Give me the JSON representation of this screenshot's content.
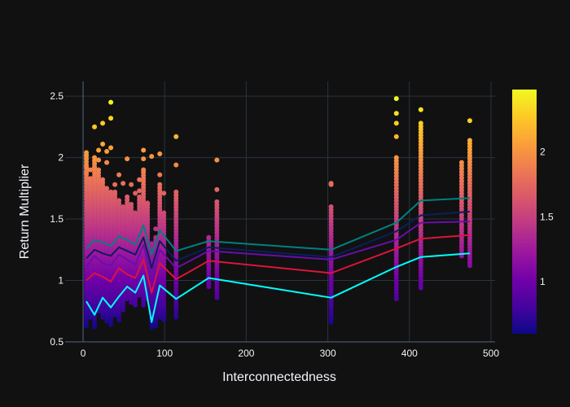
{
  "chart_data": {
    "type": "scatter",
    "title": "",
    "xlabel": "Interconnectedness",
    "ylabel": "Return Multiplier",
    "xlim": [
      -22,
      505
    ],
    "ylim": [
      0.5,
      2.62
    ],
    "x_ticks": [
      0,
      100,
      200,
      300,
      400,
      500
    ],
    "x_tick_labels": [
      "0",
      "100",
      "200",
      "300",
      "400",
      "500"
    ],
    "y_ticks": [
      0.5,
      1,
      1.5,
      2,
      2.5
    ],
    "y_tick_labels": [
      "0.5",
      "1",
      "1.5",
      "2",
      "2.5"
    ],
    "grid": true,
    "legend": "none",
    "colorscale": [
      "#0d0887",
      "#46039f",
      "#7201a8",
      "#9c179e",
      "#bd3786",
      "#d8576b",
      "#ed7953",
      "#fb9f3a",
      "#fdca26",
      "#f0f921"
    ],
    "colorbar": {
      "range": [
        0.6,
        2.48
      ],
      "ticks": [
        1,
        1.5,
        2
      ],
      "tick_labels": [
        "1",
        "1.5",
        "2"
      ]
    },
    "point_columns": [
      {
        "x": 4,
        "min": 0.63,
        "max": 2.04,
        "outliers": [
          2.02,
          1.93,
          1.88
        ]
      },
      {
        "x": 9,
        "min": 0.7,
        "max": 1.8,
        "outliers": [
          1.9,
          1.83
        ]
      },
      {
        "x": 14,
        "min": 0.62,
        "max": 2.0,
        "outliers": [
          2.25,
          1.92
        ]
      },
      {
        "x": 19,
        "min": 0.75,
        "max": 1.9,
        "outliers": [
          2.06,
          1.98
        ]
      },
      {
        "x": 24,
        "min": 0.7,
        "max": 1.82,
        "outliers": [
          2.28,
          2.11
        ]
      },
      {
        "x": 29,
        "min": 0.67,
        "max": 1.75,
        "outliers": [
          2.05,
          1.96
        ]
      },
      {
        "x": 34,
        "min": 0.64,
        "max": 1.72,
        "outliers": [
          2.45,
          2.32,
          2.08
        ]
      },
      {
        "x": 39,
        "min": 0.72,
        "max": 1.7,
        "outliers": [
          1.78,
          1.72
        ]
      },
      {
        "x": 44,
        "min": 0.68,
        "max": 1.65,
        "outliers": [
          1.86
        ]
      },
      {
        "x": 49,
        "min": 0.76,
        "max": 1.6,
        "outliers": [
          1.79
        ]
      },
      {
        "x": 54,
        "min": 0.85,
        "max": 1.68,
        "outliers": [
          1.99
        ]
      },
      {
        "x": 59,
        "min": 0.82,
        "max": 1.62,
        "outliers": [
          1.78
        ]
      },
      {
        "x": 64,
        "min": 0.8,
        "max": 1.55,
        "outliers": [
          1.71
        ]
      },
      {
        "x": 69,
        "min": 0.88,
        "max": 1.68,
        "outliers": [
          1.82,
          1.73
        ]
      },
      {
        "x": 74,
        "min": 0.8,
        "max": 1.88,
        "outliers": [
          2.06,
          1.99,
          1.9
        ]
      },
      {
        "x": 79,
        "min": 0.85,
        "max": 1.62,
        "outliers": [
          1.63
        ]
      },
      {
        "x": 84,
        "min": 0.62,
        "max": 1.3,
        "outliers": [
          2.01
        ]
      },
      {
        "x": 89,
        "min": 0.63,
        "max": 1.35,
        "outliers": [
          1.42
        ]
      },
      {
        "x": 94,
        "min": 0.7,
        "max": 1.78,
        "outliers": [
          2.03,
          1.86
        ]
      },
      {
        "x": 99,
        "min": 0.68,
        "max": 1.55,
        "outliers": [
          1.71
        ]
      },
      {
        "x": 114,
        "min": 0.7,
        "max": 1.72,
        "outliers": [
          2.17,
          1.94
        ]
      },
      {
        "x": 154,
        "min": 0.95,
        "max": 1.35,
        "outliers": []
      },
      {
        "x": 164,
        "min": 0.86,
        "max": 1.64,
        "outliers": [
          1.98,
          1.74
        ]
      },
      {
        "x": 304,
        "min": 0.66,
        "max": 1.6,
        "outliers": [
          1.79,
          1.78
        ]
      },
      {
        "x": 384,
        "min": 0.85,
        "max": 2.0,
        "outliers": [
          2.48,
          2.36,
          2.28,
          2.17
        ]
      },
      {
        "x": 414,
        "min": 0.94,
        "max": 2.28,
        "outliers": [
          2.39
        ]
      },
      {
        "x": 464,
        "min": 1.2,
        "max": 1.96,
        "outliers": []
      },
      {
        "x": 474,
        "min": 1.12,
        "max": 2.14,
        "outliers": [
          2.3
        ]
      }
    ],
    "series": [
      {
        "color": "#008080",
        "x": [
          4,
          14,
          24,
          34,
          44,
          54,
          64,
          74,
          84,
          94,
          114,
          154,
          304,
          384,
          414,
          474
        ],
        "values": [
          1.26,
          1.33,
          1.31,
          1.28,
          1.36,
          1.33,
          1.29,
          1.45,
          1.21,
          1.41,
          1.24,
          1.32,
          1.25,
          1.47,
          1.65,
          1.67
        ]
      },
      {
        "color": "#0a1f5c",
        "x": [
          4,
          14,
          24,
          34,
          44,
          54,
          64,
          74,
          84,
          94,
          114,
          154,
          304,
          384,
          414,
          474
        ],
        "values": [
          1.18,
          1.25,
          1.22,
          1.2,
          1.27,
          1.24,
          1.21,
          1.35,
          1.1,
          1.32,
          1.16,
          1.27,
          1.19,
          1.4,
          1.53,
          1.56
        ]
      },
      {
        "color": "#6a0dad",
        "x": [
          4,
          14,
          24,
          34,
          44,
          54,
          64,
          74,
          84,
          94,
          114,
          154,
          304,
          384,
          414,
          474
        ],
        "values": [
          1.11,
          1.2,
          1.14,
          1.12,
          1.21,
          1.17,
          1.13,
          1.29,
          1.02,
          1.25,
          1.1,
          1.24,
          1.17,
          1.33,
          1.47,
          1.48
        ]
      },
      {
        "color": "#dc143c",
        "x": [
          4,
          14,
          24,
          34,
          44,
          54,
          64,
          74,
          84,
          94,
          114,
          154,
          304,
          384,
          414,
          474
        ],
        "values": [
          1.0,
          1.06,
          1.03,
          0.99,
          1.1,
          1.05,
          1.02,
          1.17,
          0.9,
          1.14,
          1.01,
          1.16,
          1.06,
          1.26,
          1.34,
          1.37
        ]
      },
      {
        "color": "#00ffff",
        "x": [
          4,
          14,
          24,
          34,
          44,
          54,
          64,
          74,
          84,
          94,
          114,
          154,
          304,
          384,
          414,
          474
        ],
        "values": [
          0.83,
          0.72,
          0.86,
          0.78,
          0.87,
          0.95,
          0.9,
          1.04,
          0.66,
          0.96,
          0.85,
          1.02,
          0.86,
          1.11,
          1.19,
          1.22
        ]
      }
    ]
  }
}
